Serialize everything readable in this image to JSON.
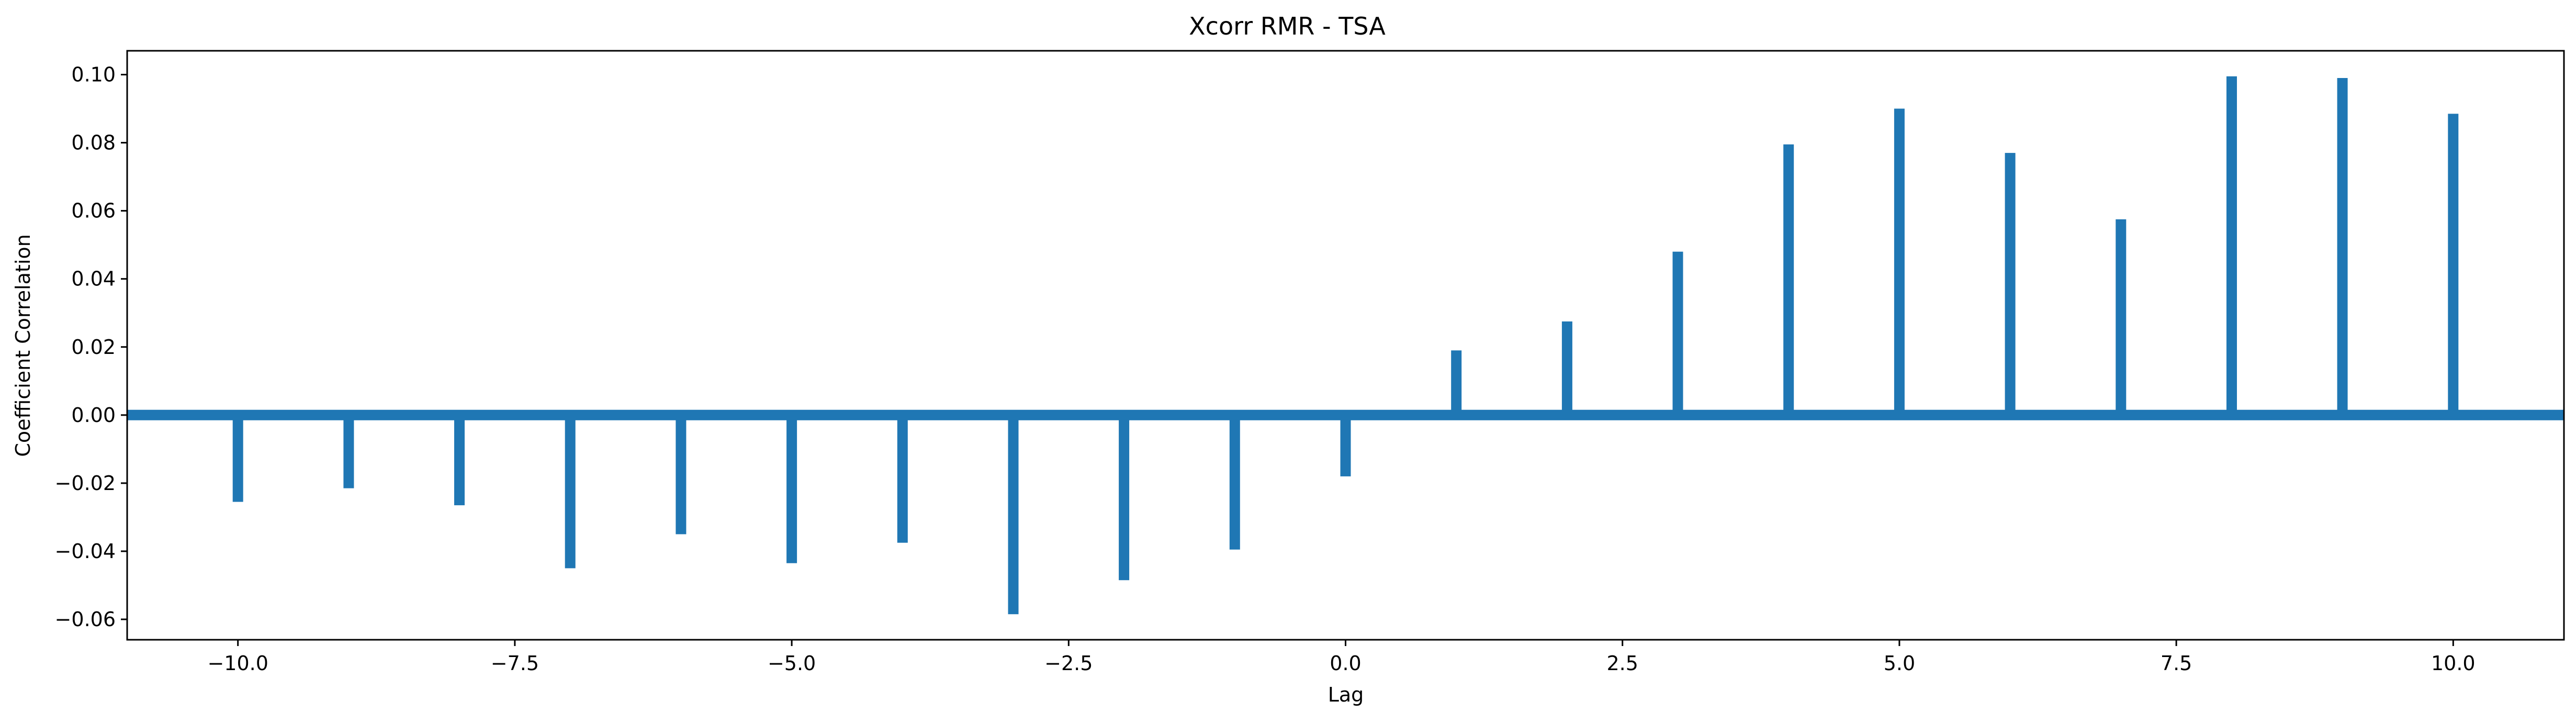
{
  "chart_data": {
    "type": "bar",
    "title": "Xcorr RMR - TSA",
    "xlabel": "Lag",
    "ylabel": "Coefficient Correlation",
    "xlim": [
      -11,
      11
    ],
    "ylim": [
      -0.066,
      0.107
    ],
    "xticks": [
      -10,
      -7.5,
      -5,
      -2.5,
      0,
      2.5,
      5,
      7.5,
      10
    ],
    "xtick_labels": [
      "−10.0",
      "−7.5",
      "−5.0",
      "−2.5",
      "0.0",
      "2.5",
      "5.0",
      "7.5",
      "10.0"
    ],
    "yticks": [
      -0.06,
      -0.04,
      -0.02,
      0.0,
      0.02,
      0.04,
      0.06,
      0.08,
      0.1
    ],
    "ytick_labels": [
      "−0.06",
      "−0.04",
      "−0.02",
      "0.00",
      "0.02",
      "0.04",
      "0.06",
      "0.08",
      "0.10"
    ],
    "grid": false,
    "baseline": 0.0,
    "color": "#1f77b4",
    "x": [
      -10,
      -9,
      -8,
      -7,
      -6,
      -5,
      -4,
      -3,
      -2,
      -1,
      0,
      1,
      2,
      3,
      4,
      5,
      6,
      7,
      8,
      9,
      10
    ],
    "values": [
      -0.0255,
      -0.0215,
      -0.0265,
      -0.045,
      -0.035,
      -0.0435,
      -0.0375,
      -0.0585,
      -0.0485,
      -0.0395,
      -0.018,
      0.019,
      0.0275,
      0.048,
      0.0795,
      0.09,
      0.077,
      0.0575,
      0.0995,
      0.099,
      0.0885
    ]
  }
}
